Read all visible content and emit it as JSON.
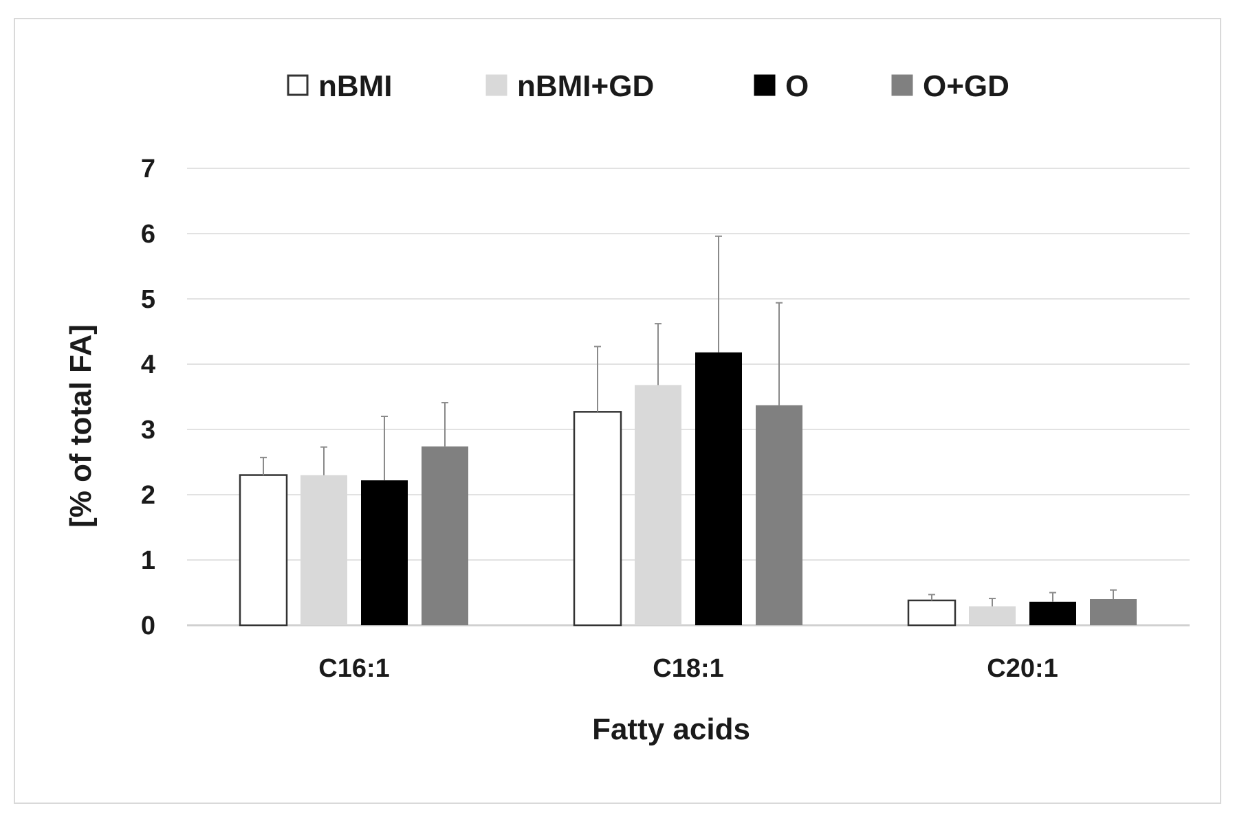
{
  "chart_data": {
    "type": "bar",
    "title": "",
    "xlabel": "Fatty acids",
    "ylabel": "[% of total FA]",
    "ylim": [
      0,
      7
    ],
    "yticks": [
      "0",
      "1",
      "2",
      "3",
      "4",
      "5",
      "6",
      "7"
    ],
    "categories": [
      "C16:1",
      "C18:1",
      "C20:1"
    ],
    "grid": "horizontal",
    "legend_position": "top",
    "series": [
      {
        "name": "nBMI",
        "color": "#ffffff",
        "stroke": "#333333",
        "values": [
          2.3,
          3.27,
          0.38
        ],
        "errors": [
          0.27,
          1.0,
          0.09
        ]
      },
      {
        "name": "nBMI+GD",
        "color": "#d9d9d9",
        "stroke": "#d9d9d9",
        "values": [
          2.3,
          3.68,
          0.29
        ],
        "errors": [
          0.43,
          0.94,
          0.12
        ]
      },
      {
        "name": "O",
        "color": "#000000",
        "stroke": "#000000",
        "values": [
          2.22,
          4.18,
          0.36
        ],
        "errors": [
          0.98,
          1.78,
          0.14
        ]
      },
      {
        "name": "O+GD",
        "color": "#808080",
        "stroke": "#808080",
        "values": [
          2.74,
          3.37,
          0.4
        ],
        "errors": [
          0.67,
          1.57,
          0.14
        ]
      }
    ]
  }
}
